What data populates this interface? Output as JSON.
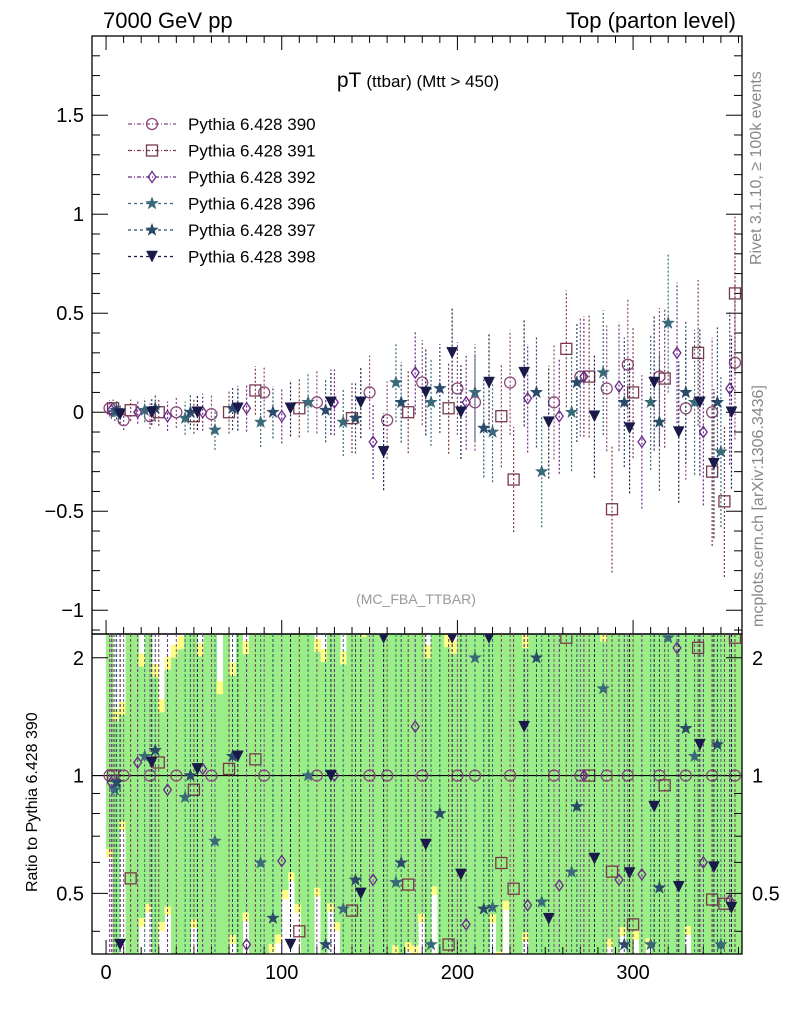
{
  "header": {
    "left": "7000 GeV pp",
    "right": "Top (parton level)"
  },
  "side_labels": {
    "rivet": "Rivet 3.1.10, ≥ 100k events",
    "mcplots": "mcplots.cern.ch [arXiv:1306.3436]"
  },
  "chart_data": {
    "type": "scatter",
    "title_main": "pT",
    "title_sub": "(ttbar) (Mtt > 450)",
    "watermark": "(MC_FBA_TTBAR)",
    "ratio_ylabel": "Ratio to Pythia 6.428 390",
    "xlim": [
      -8,
      362
    ],
    "ylim": [
      -1.12,
      1.9
    ],
    "ratio_ylim": [
      0.35,
      2.3
    ],
    "ratio_scale": "log",
    "x_ticks": [
      0,
      100,
      200,
      300
    ],
    "y_ticks": [
      -1,
      -0.5,
      0,
      0.5,
      1,
      1.5
    ],
    "y_tick_labels": [
      "−1",
      "−0.5",
      "0",
      "0.5",
      "1",
      "1.5"
    ],
    "ratio_ticks": [
      0.5,
      1,
      2
    ],
    "legend_position": "top-left",
    "series": [
      {
        "name": "Pythia 6.428 390",
        "color": "#8a4a7a",
        "marker": "circle",
        "points": [
          [
            2,
            0.02
          ],
          [
            10,
            -0.04
          ],
          [
            25,
            -0.02
          ],
          [
            40,
            0.0
          ],
          [
            60,
            -0.01
          ],
          [
            90,
            0.1
          ],
          [
            120,
            0.05
          ],
          [
            150,
            0.1
          ],
          [
            160,
            -0.04
          ],
          [
            180,
            0.15
          ],
          [
            200,
            0.12
          ],
          [
            210,
            0.05
          ],
          [
            230,
            0.15
          ],
          [
            255,
            0.05
          ],
          [
            270,
            0.18
          ],
          [
            285,
            0.12
          ],
          [
            297,
            0.24
          ],
          [
            315,
            0.18
          ],
          [
            330,
            0.02
          ],
          [
            345,
            0.0
          ],
          [
            358,
            0.25
          ]
        ]
      },
      {
        "name": "Pythia 6.428 391",
        "color": "#7a3a4a",
        "marker": "square",
        "points": [
          [
            4,
            0.02
          ],
          [
            14,
            0.01
          ],
          [
            30,
            0.0
          ],
          [
            50,
            -0.02
          ],
          [
            70,
            0.0
          ],
          [
            85,
            0.11
          ],
          [
            110,
            0.02
          ],
          [
            140,
            -0.03
          ],
          [
            172,
            0.0
          ],
          [
            195,
            0.02
          ],
          [
            225,
            -0.02
          ],
          [
            232,
            -0.34
          ],
          [
            262,
            0.32
          ],
          [
            275,
            0.18
          ],
          [
            288,
            -0.49
          ],
          [
            300,
            0.1
          ],
          [
            318,
            0.17
          ],
          [
            337,
            0.3
          ],
          [
            345,
            -0.3
          ],
          [
            352,
            -0.45
          ],
          [
            358,
            0.6
          ]
        ]
      },
      {
        "name": "Pythia 6.428 392",
        "color": "#6a2a8a",
        "marker": "diamond",
        "points": [
          [
            3,
            0.01
          ],
          [
            18,
            0.0
          ],
          [
            35,
            -0.02
          ],
          [
            55,
            0.0
          ],
          [
            80,
            0.02
          ],
          [
            100,
            -0.02
          ],
          [
            130,
            0.05
          ],
          [
            152,
            -0.15
          ],
          [
            176,
            0.2
          ],
          [
            205,
            0.05
          ],
          [
            240,
            0.07
          ],
          [
            258,
            -0.02
          ],
          [
            272,
            0.18
          ],
          [
            292,
            0.13
          ],
          [
            305,
            -0.15
          ],
          [
            325,
            0.3
          ],
          [
            340,
            -0.1
          ],
          [
            355,
            0.12
          ]
        ]
      },
      {
        "name": "Pythia 6.428 396",
        "color": "#3a6a7a",
        "marker": "star",
        "points": [
          [
            5,
            0.0
          ],
          [
            22,
            0.01
          ],
          [
            45,
            -0.03
          ],
          [
            62,
            -0.09
          ],
          [
            88,
            -0.05
          ],
          [
            115,
            0.05
          ],
          [
            135,
            -0.05
          ],
          [
            165,
            0.15
          ],
          [
            185,
            0.05
          ],
          [
            210,
            0.1
          ],
          [
            220,
            -0.1
          ],
          [
            248,
            -0.3
          ],
          [
            265,
            0.0
          ],
          [
            283,
            0.2
          ],
          [
            310,
            0.05
          ],
          [
            320,
            0.45
          ],
          [
            335,
            0.05
          ],
          [
            350,
            -0.2
          ]
        ]
      },
      {
        "name": "Pythia 6.428 397",
        "color": "#2a4a6a",
        "marker": "star",
        "points": [
          [
            6,
            0.01
          ],
          [
            28,
            0.02
          ],
          [
            48,
            0.0
          ],
          [
            72,
            0.02
          ],
          [
            95,
            0.0
          ],
          [
            125,
            0.01
          ],
          [
            142,
            -0.03
          ],
          [
            168,
            0.05
          ],
          [
            190,
            0.12
          ],
          [
            215,
            -0.08
          ],
          [
            245,
            0.1
          ],
          [
            268,
            0.15
          ],
          [
            295,
            0.05
          ],
          [
            315,
            -0.05
          ],
          [
            330,
            0.1
          ],
          [
            348,
            0.05
          ]
        ]
      },
      {
        "name": "Pythia 6.428 398",
        "color": "#1a1a4a",
        "marker": "triangle-down",
        "points": [
          [
            8,
            -0.01
          ],
          [
            26,
            0.0
          ],
          [
            52,
            0.0
          ],
          [
            75,
            0.02
          ],
          [
            105,
            0.02
          ],
          [
            128,
            0.05
          ],
          [
            145,
            0.05
          ],
          [
            158,
            -0.2
          ],
          [
            182,
            0.1
          ],
          [
            197,
            0.3
          ],
          [
            202,
            0.0
          ],
          [
            218,
            0.15
          ],
          [
            238,
            0.2
          ],
          [
            252,
            -0.05
          ],
          [
            278,
            -0.02
          ],
          [
            298,
            -0.08
          ],
          [
            312,
            0.15
          ],
          [
            326,
            -0.1
          ],
          [
            338,
            0.05
          ],
          [
            346,
            -0.26
          ],
          [
            356,
            0.0
          ]
        ]
      }
    ]
  }
}
